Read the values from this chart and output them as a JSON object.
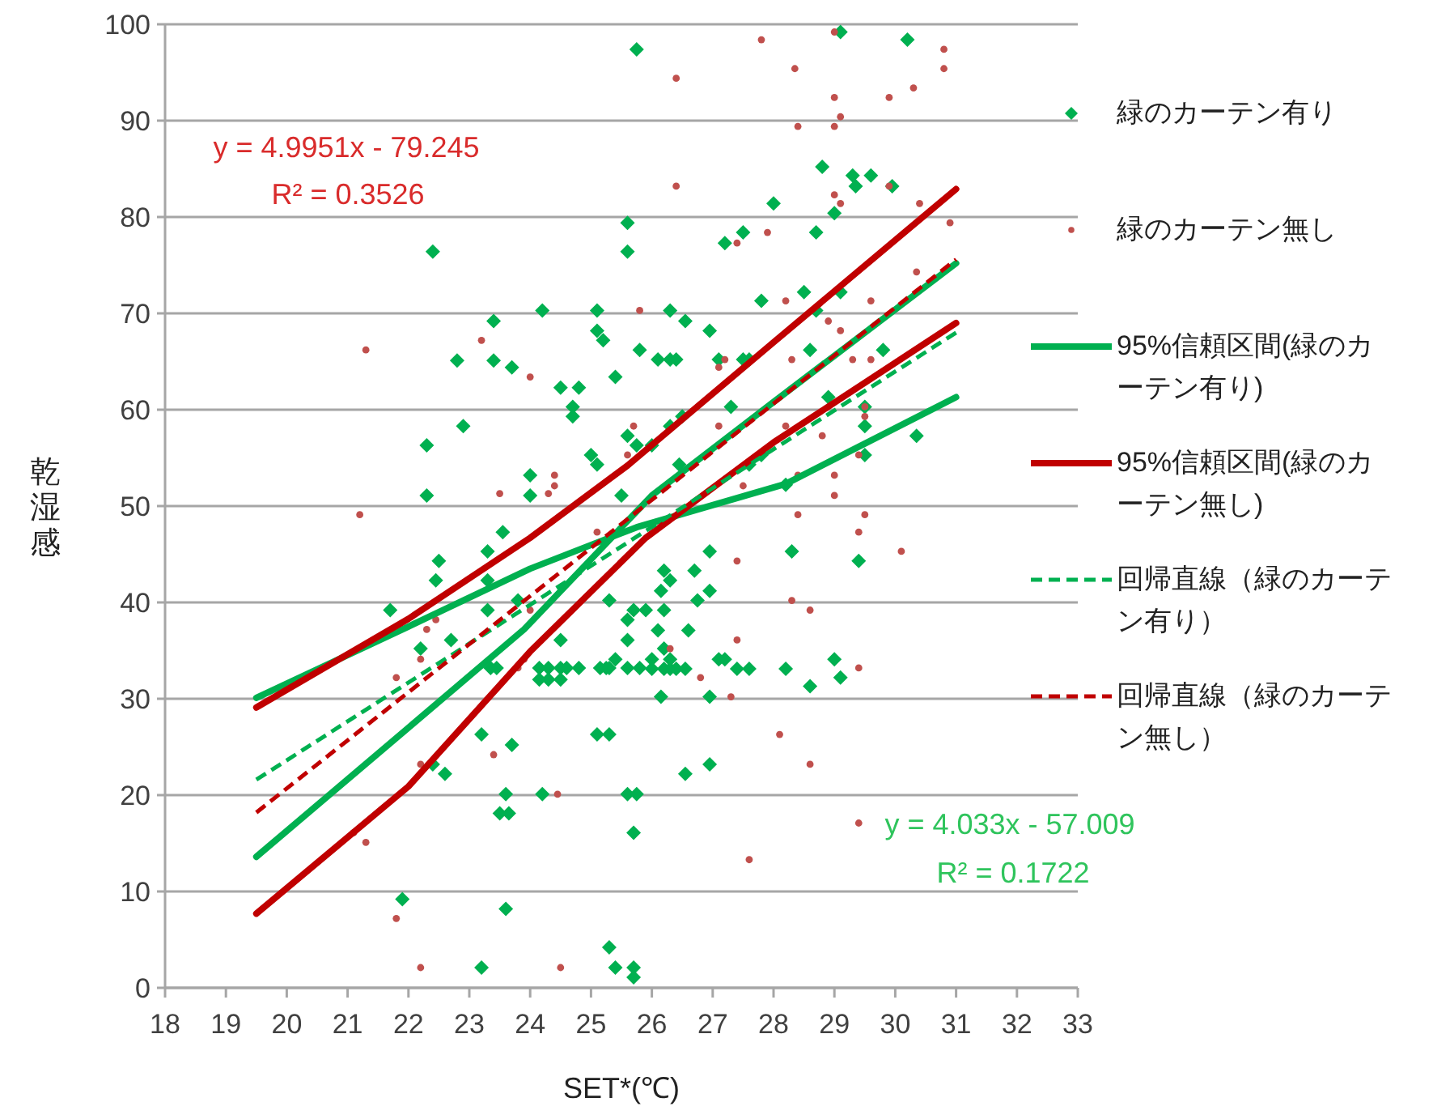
{
  "chart_data": {
    "type": "scatter",
    "xlabel": "SET*(℃)",
    "ylabel": "乾湿感",
    "xlim": [
      18,
      33
    ],
    "ylim": [
      0,
      100
    ],
    "xticks": [
      18,
      19,
      20,
      21,
      22,
      23,
      24,
      25,
      26,
      27,
      28,
      29,
      30,
      31,
      32,
      33
    ],
    "yticks": [
      0,
      10,
      20,
      30,
      40,
      50,
      60,
      70,
      80,
      90,
      100
    ],
    "grid": "y",
    "legend": "right",
    "annotations": [
      "y = 4.9951x - 79.245",
      "R² = 0.3526",
      "y = 4.033x - 57.009",
      "R² = 0.1722"
    ],
    "series": [
      {
        "name": "緑のカーテン有り",
        "marker": "diamond",
        "color": "#00b050",
        "x": [
          25.75,
          22.4,
          25.6,
          25.6,
          24.2,
          25.1,
          23.4,
          25.1,
          25.2,
          22.8,
          23.4,
          23.7,
          25.8,
          25.4,
          24.5,
          24.8,
          24.7,
          24.7,
          22.9,
          22.3,
          25.6,
          25.75,
          25.0,
          25.1,
          24.0,
          22.3,
          24.0,
          25.5,
          22.5,
          22.45,
          21.7,
          23.3,
          23.55,
          23.3,
          23.3,
          22.2,
          22.7,
          23.8,
          24.5,
          25.3,
          25.6,
          25.7,
          25.6,
          25.4,
          23.35,
          23.45,
          24.15,
          24.3,
          24.5,
          24.6,
          24.8,
          25.15,
          25.25,
          25.3,
          25.6,
          25.8,
          24.15,
          24.3,
          24.5,
          23.2,
          23.7,
          25.1,
          25.3,
          22.4,
          22.6,
          23.6,
          23.5,
          23.65,
          24.2,
          25.6,
          25.7,
          21.9,
          23.6,
          23.2,
          25.3,
          25.4,
          25.7,
          25.7,
          29.1,
          30.2,
          28.8,
          29.3,
          29.35,
          29.6,
          29.95,
          28.0,
          29.0,
          28.7,
          27.2,
          27.5,
          27.8,
          28.5,
          29.1,
          28.7,
          26.3,
          26.55,
          26.95,
          26.1,
          26.3,
          26.4,
          27.1,
          27.5,
          27.6,
          28.6,
          27.3,
          26.3,
          26.5,
          28.9,
          29.5,
          29.5,
          29.8,
          30.35,
          29.5,
          28.2,
          27.6,
          27.8,
          26.0,
          26.45,
          26.95,
          28.3,
          29.4,
          26.2,
          26.3,
          26.7,
          26.95,
          26.15,
          26.75,
          26.2,
          25.9,
          26.6,
          26.1,
          26.2,
          26.0,
          26.2,
          26.3,
          26.4,
          26.55,
          27.4,
          27.6,
          28.2,
          26.0,
          26.3,
          27.1,
          27.2,
          29.0,
          29.1,
          28.6,
          26.15,
          26.95,
          26.55,
          26.95,
          25.75
        ],
        "values": [
          97.4,
          76.4,
          79.4,
          76.4,
          70.3,
          70.3,
          69.2,
          68.2,
          67.2,
          65.1,
          65.1,
          64.4,
          66.2,
          63.4,
          62.3,
          62.3,
          60.3,
          59.3,
          58.3,
          56.3,
          57.3,
          56.3,
          55.3,
          54.3,
          53.2,
          51.1,
          51.1,
          51.1,
          44.3,
          42.3,
          39.2,
          45.3,
          47.3,
          42.3,
          39.2,
          35.2,
          36.1,
          40.2,
          36.1,
          40.2,
          38.2,
          39.2,
          36.1,
          34.1,
          33.2,
          33.2,
          33.2,
          33.2,
          33.2,
          33.2,
          33.2,
          33.2,
          33.2,
          33.2,
          33.2,
          33.2,
          32.0,
          32.0,
          32.0,
          26.3,
          25.2,
          26.3,
          26.3,
          23.2,
          22.2,
          20.1,
          18.1,
          18.1,
          20.1,
          20.1,
          16.1,
          9.2,
          8.2,
          2.1,
          4.2,
          2.1,
          2.1,
          1.1,
          99.2,
          98.4,
          85.2,
          84.3,
          83.2,
          84.3,
          83.2,
          81.4,
          80.4,
          78.4,
          77.3,
          78.4,
          71.3,
          72.2,
          72.2,
          70.3,
          70.3,
          69.2,
          68.2,
          65.2,
          65.2,
          65.2,
          65.2,
          65.2,
          65.2,
          66.2,
          60.3,
          58.3,
          59.3,
          61.3,
          60.3,
          58.3,
          66.2,
          57.3,
          55.3,
          52.2,
          54.3,
          55.3,
          56.3,
          54.3,
          45.3,
          45.3,
          44.3,
          43.3,
          42.3,
          43.3,
          41.2,
          41.2,
          40.2,
          39.2,
          39.2,
          37.1,
          37.1,
          35.2,
          33.1,
          33.1,
          33.1,
          33.1,
          33.1,
          33.1,
          33.1,
          33.1,
          34.1,
          34.1,
          34.1,
          34.1,
          34.1,
          32.2,
          31.3,
          30.2,
          30.2,
          22.2,
          23.2,
          20.1
        ]
      },
      {
        "name": "緑のカーテン無し",
        "marker": "circle",
        "color": "#c0504d",
        "x": [
          21.3,
          23.2,
          24.0,
          25.8,
          25.7,
          25.6,
          24.4,
          24.4,
          23.5,
          24.3,
          21.2,
          22.3,
          22.45,
          22.2,
          21.8,
          24.0,
          23.9,
          23.8,
          22.2,
          23.4,
          24.45,
          21.1,
          21.3,
          21.8,
          22.2,
          24.5,
          25.1,
          27.8,
          29.0,
          30.8,
          30.8,
          26.4,
          28.35,
          30.3,
          29.9,
          29.0,
          29.1,
          28.4,
          29.0,
          26.4,
          29.9,
          29.0,
          29.1,
          30.4,
          30.9,
          27.9,
          27.4,
          30.35,
          28.2,
          29.6,
          28.9,
          29.1,
          28.3,
          29.3,
          29.6,
          27.1,
          27.2,
          27.1,
          28.2,
          29.5,
          29.5,
          28.8,
          29.4,
          29.0,
          29.0,
          28.4,
          27.5,
          28.4,
          29.5,
          29.4,
          30.1,
          27.4,
          28.3,
          28.6,
          26.3,
          27.4,
          26.8,
          27.3,
          29.4,
          28.1,
          28.6,
          27.6,
          29.4
        ],
        "values": [
          66.2,
          67.2,
          63.4,
          70.3,
          58.3,
          55.3,
          53.2,
          52.1,
          51.3,
          51.3,
          49.1,
          37.2,
          38.2,
          34.1,
          32.2,
          39.2,
          34.1,
          33.2,
          23.2,
          24.2,
          20.1,
          16.1,
          15.1,
          7.2,
          2.1,
          2.1,
          47.3,
          98.4,
          99.2,
          97.4,
          95.4,
          94.4,
          95.4,
          93.4,
          92.4,
          92.4,
          90.4,
          89.4,
          89.4,
          83.2,
          83.2,
          82.3,
          81.4,
          81.4,
          79.4,
          78.4,
          77.3,
          74.3,
          71.3,
          71.3,
          69.2,
          68.2,
          65.2,
          65.2,
          65.2,
          64.4,
          65.2,
          58.3,
          58.3,
          60.3,
          59.3,
          57.3,
          55.3,
          53.2,
          51.1,
          53.2,
          52.1,
          49.1,
          49.1,
          47.3,
          45.3,
          44.3,
          40.2,
          39.2,
          35.2,
          36.1,
          32.2,
          30.2,
          33.2,
          26.3,
          23.2,
          13.3,
          17.1
        ]
      },
      {
        "name": "95%信頼区間(緑のカーテン有り)",
        "type": "line",
        "line_style": "solid",
        "color": "#00b050",
        "x": [
          19.5,
          22,
          24,
          25.75,
          28.2,
          31
        ],
        "values": [
          30.1,
          37.5,
          43.5,
          47.8,
          52.3,
          61.3
        ]
      },
      {
        "type": "line",
        "line_style": "solid",
        "color": "#00b050",
        "x": [
          19.5,
          22,
          23.9,
          26,
          28,
          31
        ],
        "values": [
          13.6,
          27,
          37.2,
          51.1,
          60.8,
          75.2
        ]
      },
      {
        "name": "95%信頼区間(緑のカーテン無し)",
        "type": "line",
        "line_style": "solid",
        "color": "#c00000",
        "x": [
          19.5,
          22,
          24,
          25.6,
          28,
          31
        ],
        "values": [
          29.1,
          38.3,
          46.7,
          54.2,
          67,
          82.9
        ]
      },
      {
        "type": "line",
        "line_style": "solid",
        "color": "#c00000",
        "x": [
          19.5,
          22,
          24,
          25.9,
          28,
          31
        ],
        "values": [
          7.7,
          20.9,
          34.9,
          46.7,
          56.6,
          69.0
        ]
      },
      {
        "name": "回帰直線（緑のカーテン有り）",
        "type": "line",
        "line_style": "dashed",
        "color": "#00b050",
        "x": [
          19.5,
          31
        ],
        "values": [
          21.6,
          68.0
        ]
      },
      {
        "name": "回帰直線（緑のカーテン無し）",
        "type": "line",
        "line_style": "dashed",
        "color": "#c00000",
        "x": [
          19.5,
          31
        ],
        "values": [
          18.2,
          75.6
        ]
      }
    ]
  }
}
